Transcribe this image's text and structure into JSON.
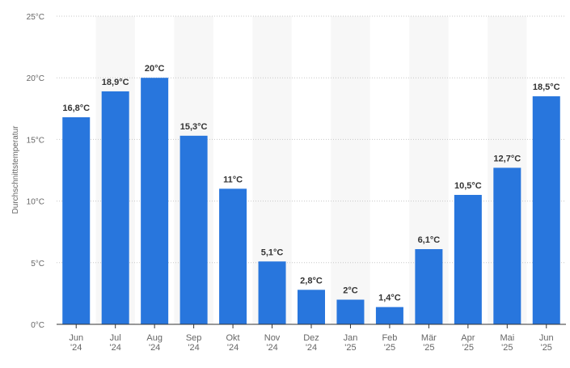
{
  "chart_data": {
    "type": "bar",
    "ylabel": "Durchschnittstemperatur",
    "unit": "°C",
    "ylim": [
      0,
      25
    ],
    "yticks": [
      0,
      5,
      10,
      15,
      20,
      25
    ],
    "ytick_labels": [
      "0°C",
      "5°C",
      "10°C",
      "15°C",
      "20°C",
      "25°C"
    ],
    "grid": true,
    "categories": [
      [
        "Jun",
        "'24"
      ],
      [
        "Jul",
        "'24"
      ],
      [
        "Aug",
        "'24"
      ],
      [
        "Sep",
        "'24"
      ],
      [
        "Okt",
        "'24"
      ],
      [
        "Nov",
        "'24"
      ],
      [
        "Dez",
        "'24"
      ],
      [
        "Jan",
        "'25"
      ],
      [
        "Feb",
        "'25"
      ],
      [
        "Mär",
        "'25"
      ],
      [
        "Apr",
        "'25"
      ],
      [
        "Mai",
        "'25"
      ],
      [
        "Jun",
        "'25"
      ]
    ],
    "values": [
      16.8,
      18.9,
      20,
      15.3,
      11,
      5.1,
      2.8,
      2,
      1.4,
      6.1,
      10.5,
      12.7,
      18.5
    ],
    "value_labels": [
      "16,8°C",
      "18,9°C",
      "20°C",
      "15,3°C",
      "11°C",
      "5,1°C",
      "2,8°C",
      "2°C",
      "1,4°C",
      "6,1°C",
      "10,5°C",
      "12,7°C",
      "18,5°C"
    ],
    "colors": {
      "bar": "#2876dd",
      "grid": "#c7c7c7",
      "band": "#f7f7f7",
      "axis": "#333333",
      "tick_text": "#666666",
      "label_text": "#333333"
    }
  }
}
